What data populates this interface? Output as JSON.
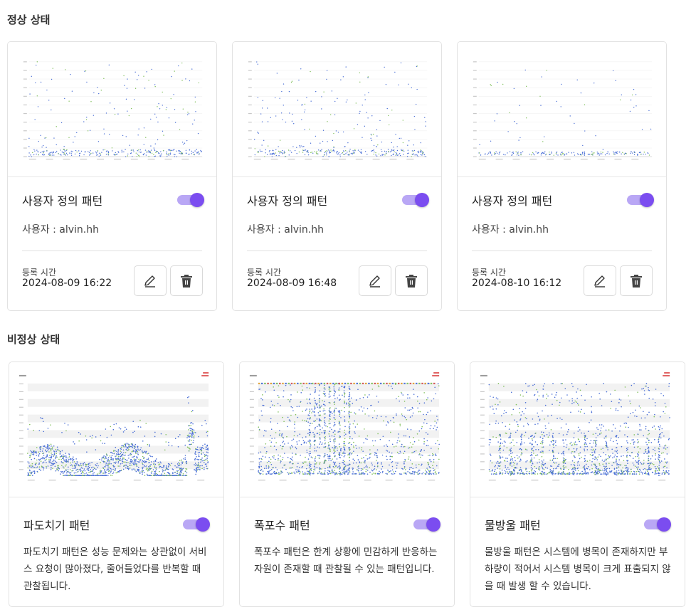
{
  "sections": {
    "normal_title": "정상 상태",
    "abnormal_title": "비정상 상태"
  },
  "normal_cards": [
    {
      "title": "사용자 정의 패턴",
      "user": "사용자 : alvin.hh",
      "reg_label": "등록 시간",
      "reg_time": "2024-08-09 16:22",
      "enabled": true
    },
    {
      "title": "사용자 정의 패턴",
      "user": "사용자 : alvin.hh",
      "reg_label": "등록 시간",
      "reg_time": "2024-08-09 16:48",
      "enabled": true
    },
    {
      "title": "사용자 정의 패턴",
      "user": "사용자 : alvin.hh",
      "reg_label": "등록 시간",
      "reg_time": "2024-08-10 16:12",
      "enabled": true
    }
  ],
  "abnormal_cards": [
    {
      "title": "파도치기 패턴",
      "description": "파도치기 패턴은 성능 문제와는 상관없이 서비스 요청이 많아졌다, 줄어들었다를 반복할 때 관찰됩니다.",
      "enabled": true
    },
    {
      "title": "폭포수 패턴",
      "description": "폭포수 패턴은 한계 상황에 민감하게 반응하는 자원이 존재할 때 관찰될 수 있는 패턴입니다.",
      "enabled": true
    },
    {
      "title": "물방울 패턴",
      "description": "물방울 패턴은 시스템에 병목이 존재하지만 부하량이 적어서 시스템 병목이 크게 표출되지 않을 때 발생 할 수 있습니다.",
      "enabled": true
    }
  ],
  "icons": {
    "edit": "pencil-icon",
    "delete": "trash-icon"
  },
  "colors": {
    "accent": "#7b4df0",
    "accent_light": "#b9a7f5",
    "dot_blue": "#4a6fd6",
    "dot_green": "#7fbf5a"
  }
}
